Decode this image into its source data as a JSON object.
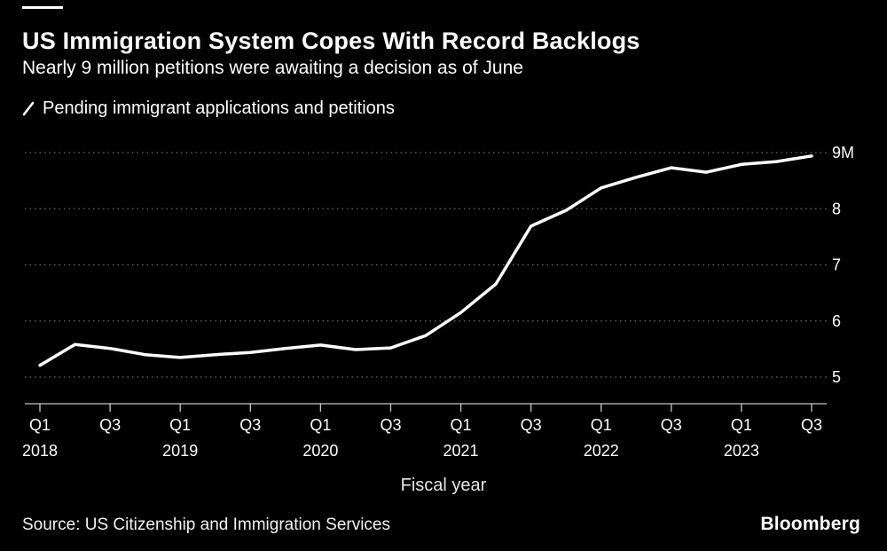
{
  "header": {
    "title": "US Immigration System Copes With Record Backlogs",
    "subtitle": "Nearly 9 million petitions were awaiting a decision as of June"
  },
  "legend": {
    "label": "Pending immigrant applications and petitions"
  },
  "chart_data": {
    "type": "line",
    "title": "US Immigration System Copes With Record Backlogs",
    "subtitle": "Nearly 9 million petitions were awaiting a decision as of June",
    "xlabel": "Fiscal year",
    "ylabel": "",
    "unit": "millions",
    "ylim": [
      5,
      9
    ],
    "grid": "horizontal-dotted",
    "legend_position": "top-left",
    "colors": {
      "background": "#000000",
      "line": "#ffffff",
      "grid": "#6b6b6b",
      "axis": "#c8c8c8",
      "text": "#ffffff"
    },
    "x_quarters": [
      "2018 Q1",
      "2018 Q2",
      "2018 Q3",
      "2018 Q4",
      "2019 Q1",
      "2019 Q2",
      "2019 Q3",
      "2019 Q4",
      "2020 Q1",
      "2020 Q2",
      "2020 Q3",
      "2020 Q4",
      "2021 Q1",
      "2021 Q2",
      "2021 Q3",
      "2021 Q4",
      "2022 Q1",
      "2022 Q2",
      "2022 Q3",
      "2022 Q4",
      "2023 Q1",
      "2023 Q2",
      "2023 Q3"
    ],
    "series": [
      {
        "name": "Pending immigrant applications and petitions",
        "values": [
          5.21,
          5.58,
          5.51,
          5.4,
          5.35,
          5.4,
          5.44,
          5.51,
          5.57,
          5.49,
          5.52,
          5.74,
          6.15,
          6.66,
          7.69,
          7.97,
          8.37,
          8.56,
          8.73,
          8.65,
          8.79,
          8.84,
          8.94
        ]
      }
    ],
    "y_ticks": [
      {
        "value": 9,
        "label": "9M"
      },
      {
        "value": 8,
        "label": "8"
      },
      {
        "value": 7,
        "label": "7"
      },
      {
        "value": 6,
        "label": "6"
      },
      {
        "value": 5,
        "label": "5"
      }
    ],
    "x_ticks": [
      {
        "i": 0,
        "label": "Q1",
        "year": "2018"
      },
      {
        "i": 2,
        "label": "Q3"
      },
      {
        "i": 4,
        "label": "Q1",
        "year": "2019"
      },
      {
        "i": 6,
        "label": "Q3"
      },
      {
        "i": 8,
        "label": "Q1",
        "year": "2020"
      },
      {
        "i": 10,
        "label": "Q3"
      },
      {
        "i": 12,
        "label": "Q1",
        "year": "2021"
      },
      {
        "i": 14,
        "label": "Q3"
      },
      {
        "i": 16,
        "label": "Q1",
        "year": "2022"
      },
      {
        "i": 18,
        "label": "Q3"
      },
      {
        "i": 20,
        "label": "Q1",
        "year": "2023"
      },
      {
        "i": 22,
        "label": "Q3"
      }
    ]
  },
  "footer": {
    "source": "Source: US Citizenship and Immigration Services",
    "brand": "Bloomberg"
  }
}
